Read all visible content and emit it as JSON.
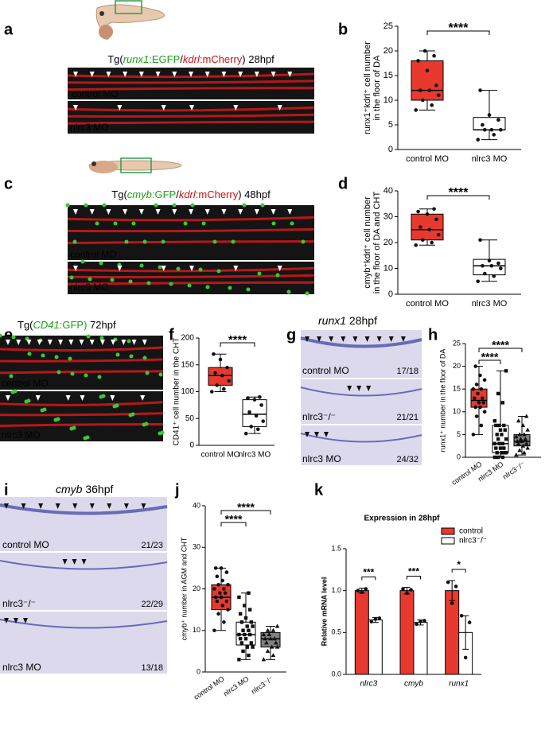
{
  "figure": {
    "letters": [
      "a",
      "b",
      "c",
      "d",
      "e",
      "f",
      "g",
      "h",
      "i",
      "j",
      "k"
    ]
  },
  "images": [
    {
      "title": [
        "Tg(",
        "runx1",
        ":EGFP",
        "/",
        "kdrl",
        ":mCherry",
        ") 28hpf"
      ],
      "labels": [
        "control MO",
        "nlrc3 MO"
      ]
    },
    {
      "title": [
        "Tg(",
        "cmyb",
        ":GFP",
        "/",
        "kdrl",
        ":mCherry",
        ")  48hpf"
      ],
      "labels": [
        "control MO",
        "nlrc3 MO"
      ]
    },
    {
      "title": [
        "Tg(",
        "CD41",
        ":GFP)",
        "  72hpf"
      ],
      "labels": [
        "control MO",
        "nlrc3 MO"
      ]
    },
    {
      "title": [
        "runx1",
        "   28hpf"
      ],
      "labels": [
        "control MO",
        "nlrc3⁻/⁻",
        "nlrc3 MO"
      ],
      "ratios": [
        "17/18",
        "21/21",
        "24/32"
      ]
    },
    {
      "title": [
        "cmyb",
        "   36hpf"
      ],
      "labels": [
        "control MO",
        "nlrc3⁻/⁻",
        "nlrc3 MO"
      ],
      "ratios": [
        "21/23",
        "22/29",
        "13/18"
      ]
    }
  ],
  "chart_data": [
    {
      "type": "box",
      "ylabel": [
        "runx1⁺kdrl⁺ cell number",
        "in the floor of DA"
      ],
      "ylim": [
        0,
        25
      ],
      "yticks": [
        0,
        5,
        10,
        15,
        20,
        25
      ],
      "boxes": [
        {
          "name": "control MO",
          "color": "#e8392e",
          "marker": "circle",
          "min": 8,
          "q1": 10,
          "median": 12,
          "q3": 18,
          "max": 20,
          "points": [
            8,
            9,
            10,
            11,
            12,
            12,
            13,
            16,
            18,
            19,
            20
          ]
        },
        {
          "name": "nlrc3 MO",
          "color": "#ffffff",
          "marker": "circle",
          "min": 2,
          "q1": 4,
          "median": 4,
          "q3": 6.5,
          "max": 12,
          "points": [
            2,
            3,
            4,
            4,
            4,
            5,
            6,
            7,
            12
          ]
        }
      ],
      "annotations": [
        "****"
      ]
    },
    {
      "type": "box",
      "ylabel": [
        "cmyb⁺kdrl⁺ cell number",
        "in the floor of DA and CHT"
      ],
      "ylim": [
        0,
        40
      ],
      "yticks": [
        0,
        10,
        20,
        30,
        40
      ],
      "boxes": [
        {
          "name": "control MO",
          "color": "#e8392e",
          "marker": "circle",
          "min": 19,
          "q1": 21,
          "median": 25,
          "q3": 31,
          "max": 33,
          "points": [
            19,
            20,
            21,
            23,
            25,
            26,
            29,
            31,
            32,
            33
          ]
        },
        {
          "name": "nlrc3 MO",
          "color": "#ffffff",
          "marker": "circle",
          "min": 5,
          "q1": 7.5,
          "median": 11,
          "q3": 13.5,
          "max": 21,
          "points": [
            5,
            7,
            8,
            10,
            11,
            11,
            12,
            13,
            21
          ]
        }
      ],
      "annotations": [
        "****"
      ]
    },
    {
      "type": "box",
      "ylabel": [
        "CD41⁺ cell number in the CHT"
      ],
      "ylim": [
        0,
        200
      ],
      "yticks": [
        0,
        50,
        100,
        150,
        200
      ],
      "boxes": [
        {
          "name": "control MO",
          "color": "#e8392e",
          "marker": "circle",
          "min": 100,
          "q1": 112,
          "median": 130,
          "q3": 145,
          "max": 170,
          "points": [
            100,
            105,
            112,
            120,
            130,
            135,
            145,
            160,
            170
          ]
        },
        {
          "name": "nlrc3 MO",
          "color": "#ffffff",
          "marker": "circle",
          "min": 22,
          "q1": 35,
          "median": 58,
          "q3": 85,
          "max": 90,
          "points": [
            22,
            30,
            35,
            45,
            55,
            62,
            75,
            85,
            88,
            90
          ]
        }
      ],
      "annotations": [
        "****"
      ]
    },
    {
      "type": "box",
      "ylabel": [
        "runx1⁺ number in the floor of DA"
      ],
      "ylim": [
        0,
        25
      ],
      "yticks": [
        0,
        5,
        10,
        15,
        20,
        25
      ],
      "boxes": [
        {
          "name": "control MO",
          "color": "#e8392e",
          "marker": "circle",
          "min": 5,
          "q1": 11,
          "median": 12.5,
          "q3": 15,
          "max": 20,
          "points": [
            5,
            7,
            9,
            10,
            11,
            11,
            12,
            12,
            13,
            13,
            14,
            15,
            15,
            16,
            17,
            18,
            20
          ]
        },
        {
          "name": "nlrc3 MO",
          "color": "#ffffff",
          "marker": "square",
          "min": 0,
          "q1": 1,
          "median": 3,
          "q3": 7,
          "max": 19,
          "points": [
            0,
            0,
            0,
            1,
            1,
            1,
            1,
            2,
            2,
            2,
            3,
            3,
            3,
            4,
            4,
            5,
            5,
            6,
            6,
            7,
            7,
            7,
            8,
            12,
            14,
            19
          ]
        },
        {
          "name": "nlrc3⁻/⁻",
          "color": "#808080",
          "marker": "triangle",
          "min": 0.5,
          "q1": 2.5,
          "median": 3.5,
          "q3": 5,
          "max": 9,
          "points": [
            0.5,
            1,
            1.5,
            2,
            2.5,
            3,
            3,
            3.5,
            3.5,
            4,
            4,
            4.5,
            5,
            5,
            6,
            7,
            8,
            9
          ]
        }
      ],
      "annotations": [
        "****",
        "****"
      ]
    },
    {
      "type": "box",
      "ylabel": [
        "cmyb⁺ number in AGM and CHT"
      ],
      "ylim": [
        0,
        40
      ],
      "yticks": [
        0,
        10,
        20,
        30,
        40
      ],
      "boxes": [
        {
          "name": "control MO",
          "color": "#e8392e",
          "marker": "circle",
          "min": 10,
          "q1": 15,
          "median": 18,
          "q3": 21,
          "max": 25,
          "points": [
            10,
            12,
            14,
            15,
            16,
            17,
            17,
            18,
            18,
            19,
            19,
            20,
            20,
            21,
            21,
            22,
            23,
            24,
            25,
            25
          ]
        },
        {
          "name": "nlrc3 MO",
          "color": "#ffffff",
          "marker": "square",
          "min": 3,
          "q1": 6.5,
          "median": 9,
          "q3": 12,
          "max": 19,
          "points": [
            3,
            4,
            5,
            6,
            6,
            7,
            7,
            8,
            8,
            9,
            9,
            9,
            10,
            10,
            11,
            11,
            12,
            12,
            13,
            14,
            15,
            16,
            18,
            19
          ]
        },
        {
          "name": "nlrc3⁻/⁻",
          "color": "#808080",
          "marker": "triangle",
          "min": 3,
          "q1": 6,
          "median": 8,
          "q3": 9.5,
          "max": 11,
          "points": [
            3,
            4,
            5,
            6,
            6,
            7,
            7,
            8,
            8,
            8,
            9,
            9,
            10,
            10,
            11
          ]
        }
      ],
      "annotations": [
        "****",
        "****"
      ]
    },
    {
      "type": "bar",
      "title": "Expression in 28hpf",
      "ylabel": [
        "Relative mRNA level"
      ],
      "ylim": [
        0,
        1.5
      ],
      "yticks": [
        {
          "value": 0,
          "label": "0.0"
        },
        0.5,
        {
          "value": 1,
          "label": "1.0"
        },
        1.5
      ],
      "categories": [
        "nlrc3",
        "cmyb",
        "runx1"
      ],
      "legend": "top-right",
      "series": [
        {
          "name": "control",
          "color": "#e8392e",
          "values": [
            1.0,
            1.0,
            1.0
          ],
          "errors": [
            0.03,
            0.04,
            0.12
          ],
          "points": [
            [
              1.0,
              0.98,
              1.02
            ],
            [
              1.02,
              0.97,
              1.01
            ],
            [
              1.1,
              0.85,
              1.05
            ]
          ]
        },
        {
          "name": "nlrc3⁻/⁻",
          "color": "#ffffff",
          "values": [
            0.65,
            0.62,
            0.5
          ],
          "errors": [
            0.03,
            0.03,
            0.2
          ],
          "points": [
            [
              0.63,
              0.66,
              0.67
            ],
            [
              0.6,
              0.63,
              0.64
            ],
            [
              0.7,
              0.2,
              0.62
            ]
          ]
        }
      ],
      "annotations": [
        "***",
        "***",
        "*"
      ]
    }
  ]
}
